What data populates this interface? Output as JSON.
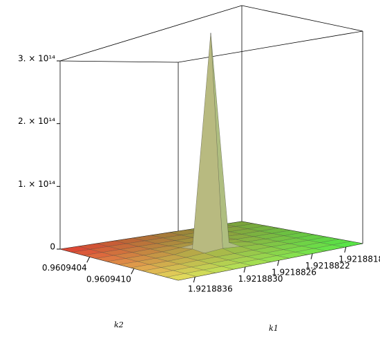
{
  "chart_data": {
    "type": "surface",
    "x_label": "k1",
    "y_label": "k2",
    "xlim": [
      1.9218816,
      1.9218838
    ],
    "ylim": [
      0.96094,
      0.9609416
    ],
    "zlim": [
      0,
      300000000000000
    ],
    "xticks": [
      {
        "value": 1.9218818,
        "label": "1.9218818"
      },
      {
        "value": 1.9218822,
        "label": "1.9218822"
      },
      {
        "value": 1.9218826,
        "label": "1.9218826"
      },
      {
        "value": 1.921883,
        "label": "1.9218830"
      },
      {
        "value": 1.9218836,
        "label": "1.9218836"
      }
    ],
    "yticks": [
      {
        "value": 0.9609404,
        "label": "0.9609404"
      },
      {
        "value": 0.960941,
        "label": "0.9609410"
      }
    ],
    "zticks": [
      0,
      {
        "value": 100000000000000,
        "label": "1. × 10¹⁴"
      },
      {
        "value": 200000000000000,
        "label": "2. × 10¹⁴"
      },
      {
        "value": 300000000000000,
        "label": "3. × 10¹⁴"
      }
    ],
    "x": [
      1.9218816,
      1.92188182,
      1.92188204,
      1.92188226,
      1.92188248,
      1.9218827,
      1.92188292,
      1.92188314,
      1.92188336,
      1.92188358,
      1.9218838
    ],
    "y": [
      0.96094,
      0.96094016,
      0.96094032,
      0.96094048,
      0.96094064,
      0.9609408,
      0.96094096,
      0.96094112,
      0.96094128,
      0.96094144,
      0.9609416
    ],
    "z": [
      [
        0,
        0,
        0,
        0,
        0,
        0,
        0,
        0,
        0,
        0,
        0
      ],
      [
        0,
        0,
        0,
        0,
        0,
        0,
        0,
        0,
        0,
        0,
        0
      ],
      [
        0,
        0,
        0,
        0,
        0,
        0,
        0,
        0,
        0,
        0,
        0
      ],
      [
        0,
        0,
        0,
        500000000000,
        500000000000,
        500000000000,
        500000000000,
        500000000000,
        0,
        0,
        0
      ],
      [
        0,
        0,
        0,
        500000000000,
        2000000000000,
        4000000000000,
        2000000000000,
        500000000000,
        0,
        0,
        0
      ],
      [
        0,
        0,
        0,
        500000000000,
        4000000000000,
        310000000000000,
        4000000000000,
        500000000000,
        0,
        0,
        0
      ],
      [
        0,
        0,
        0,
        500000000000,
        2000000000000,
        4000000000000,
        2000000000000,
        500000000000,
        0,
        0,
        0
      ],
      [
        0,
        0,
        0,
        500000000000,
        500000000000,
        500000000000,
        500000000000,
        500000000000,
        0,
        0,
        0
      ],
      [
        0,
        0,
        0,
        0,
        0,
        0,
        0,
        0,
        0,
        0,
        0
      ],
      [
        0,
        0,
        0,
        0,
        0,
        0,
        0,
        0,
        0,
        0,
        0
      ],
      [
        0,
        0,
        0,
        0,
        0,
        0,
        0,
        0,
        0,
        0,
        0
      ]
    ]
  }
}
